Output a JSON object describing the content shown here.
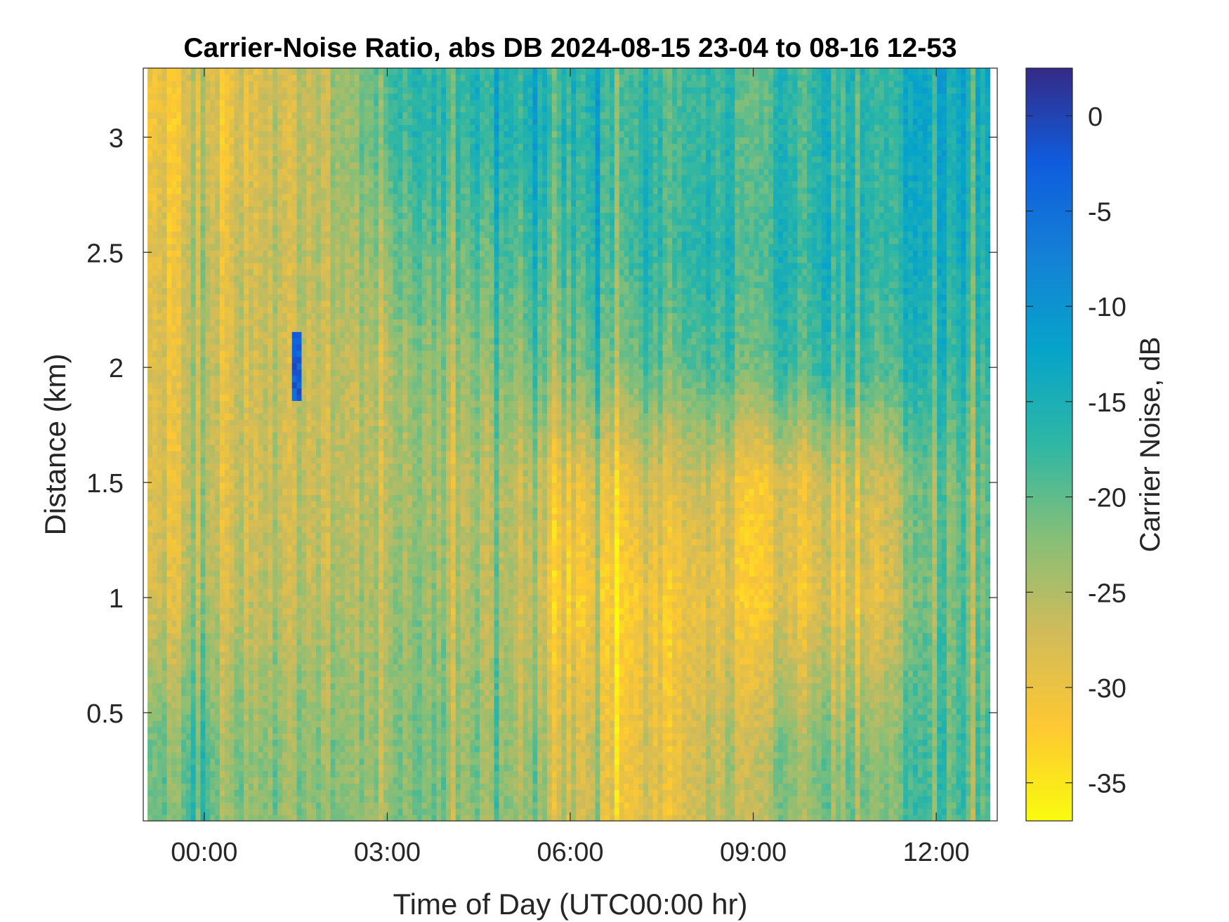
{
  "chart_data": {
    "type": "heatmap",
    "title": "Carrier-Noise Ratio, abs DB 2024-08-15 23-04 to 08-16 12-53",
    "xlabel": "Time of Day (UTC00:00 hr)",
    "ylabel": "Distance (km)",
    "colorbar_label": "Carrier Noise, dB",
    "x_start_hours": -0.93,
    "x_end_hours": 12.88,
    "xlim_hours": [
      -1.0,
      13.0
    ],
    "ylim": [
      0.03,
      3.3
    ],
    "x_ticks": [
      0,
      3,
      6,
      9,
      12
    ],
    "x_tick_labels": [
      "00:00",
      "03:00",
      "06:00",
      "09:00",
      "12:00"
    ],
    "y_ticks": [
      0.5,
      1,
      1.5,
      2,
      2.5,
      3
    ],
    "y_tick_labels": [
      "0.5",
      "1",
      "1.5",
      "2",
      "2.5",
      "3"
    ],
    "clim": [
      -37,
      2.5
    ],
    "colorbar_ticks": [
      0,
      -5,
      -10,
      -15,
      -20,
      -25,
      -30,
      -35
    ],
    "colorbar_tick_labels": [
      "0",
      "-5",
      "-10",
      "-15",
      "-20",
      "-25",
      "-30",
      "-35"
    ],
    "colormap": "parula",
    "colormap_stops": [
      "#352a87",
      "#0f5cdd",
      "#1481d6",
      "#06a4ca",
      "#2eb7a4",
      "#87bf77",
      "#d1bb59",
      "#fec832",
      "#f9fb0e"
    ],
    "grid": false,
    "summary_profile": {
      "x_hours": [
        -1,
        0,
        1,
        2,
        3,
        4,
        5,
        6,
        7,
        8,
        9,
        10,
        11,
        12,
        13
      ],
      "distance_km": [
        0.3,
        1.0,
        1.5,
        2.0,
        2.5,
        3.0
      ],
      "values_db": [
        [
          -21,
          -22,
          -23,
          -22,
          -22,
          -22,
          -23,
          -26,
          -29,
          -28,
          -24,
          -22,
          -21,
          -19,
          -19
        ],
        [
          -28,
          -27,
          -26,
          -25,
          -23,
          -24,
          -25,
          -31,
          -31,
          -30,
          -30,
          -29,
          -28,
          -21,
          -20
        ],
        [
          -29,
          -28,
          -27,
          -26,
          -24,
          -25,
          -25,
          -29,
          -28,
          -27,
          -30,
          -28,
          -26,
          -21,
          -20
        ],
        [
          -29,
          -28,
          -27,
          -26,
          -24,
          -23,
          -22,
          -21,
          -20,
          -20,
          -19,
          -18,
          -18,
          -17,
          -17
        ],
        [
          -30,
          -28,
          -27,
          -25,
          -21,
          -20,
          -19,
          -18,
          -17,
          -17,
          -17,
          -16,
          -16,
          -15,
          -15
        ],
        [
          -31,
          -30,
          -28,
          -25,
          -18,
          -17,
          -16,
          -16,
          -17,
          -18,
          -18,
          -17,
          -16,
          -14,
          -14
        ]
      ],
      "anomaly": {
        "x_hours": 1.5,
        "distance_km": [
          1.85,
          2.15
        ],
        "values_db": [
          -5,
          0
        ]
      }
    }
  }
}
